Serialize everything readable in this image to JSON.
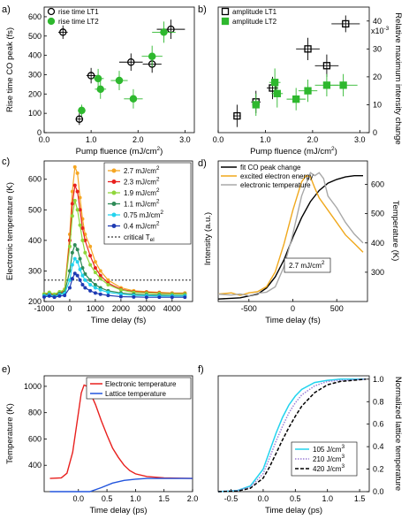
{
  "chart_data": [
    {
      "id": "a",
      "type": "scatter",
      "panel_label": "a)",
      "xlabel": "Pump fluence (mJ/cm",
      "xlabel_sup": "2",
      "xlabel_tail": ")",
      "ylabel": "Rise time CO peak (fs)",
      "xlim": [
        0,
        3.2
      ],
      "ylim": [
        0,
        650
      ],
      "xticks": [
        "0.0",
        "1.0",
        "2.0",
        "3.0"
      ],
      "xtick_values": [
        0,
        1,
        2,
        3
      ],
      "yticks": [
        "0",
        "100",
        "200",
        "300",
        "400",
        "500",
        "600"
      ],
      "ytick_values": [
        0,
        100,
        200,
        300,
        400,
        500,
        600
      ],
      "legend": "top-left",
      "series": [
        {
          "name": "rise time LT1",
          "marker": "open-circle",
          "color": "#000000",
          "points": [
            [
              0.4,
              520,
              0.1,
              35
            ],
            [
              0.75,
              70,
              0.08,
              30
            ],
            [
              1.0,
              295,
              0.1,
              40
            ],
            [
              1.85,
              365,
              0.25,
              45
            ],
            [
              2.3,
              355,
              0.2,
              45
            ],
            [
              2.7,
              535,
              0.3,
              50
            ]
          ]
        },
        {
          "name": "rise time LT2",
          "marker": "filled-circle",
          "color": "#2eb82e",
          "points": [
            [
              0.8,
              115,
              0.08,
              30
            ],
            [
              1.15,
              280,
              0.12,
              50
            ],
            [
              1.2,
              225,
              0.12,
              50
            ],
            [
              1.6,
              270,
              0.18,
              50
            ],
            [
              1.9,
              175,
              0.2,
              50
            ],
            [
              2.3,
              395,
              0.22,
              55
            ],
            [
              2.55,
              520,
              0.25,
              55
            ]
          ]
        }
      ]
    },
    {
      "id": "b",
      "type": "scatter",
      "panel_label": "b)",
      "xlabel": "Pump fluence (mJ/cm",
      "xlabel_sup": "2",
      "xlabel_tail": ")",
      "ylabel": "Relative maximum intensity change",
      "y_multiplier": "x10",
      "xlim": [
        0,
        3.2
      ],
      "ylim": [
        0,
        45
      ],
      "xticks": [
        "0.0",
        "1.0",
        "2.0",
        "3.0"
      ],
      "xtick_values": [
        0,
        1,
        2,
        3
      ],
      "yticks": [
        "0",
        "10",
        "20",
        "30",
        "40"
      ],
      "ytick_values": [
        0,
        10,
        20,
        30,
        40
      ],
      "legend": "top-left",
      "series": [
        {
          "name": "amplitude LT1",
          "marker": "open-square",
          "color": "#000000",
          "points": [
            [
              0.4,
              6,
              0.08,
              4
            ],
            [
              0.8,
              11,
              0.1,
              4
            ],
            [
              1.15,
              16,
              0.12,
              4
            ],
            [
              1.9,
              30,
              0.25,
              4
            ],
            [
              2.3,
              24,
              0.25,
              4
            ],
            [
              2.7,
              39,
              0.3,
              3
            ]
          ]
        },
        {
          "name": "amplitude LT2",
          "marker": "filled-square",
          "color": "#2eb82e",
          "points": [
            [
              0.8,
              10,
              0.08,
              4
            ],
            [
              1.2,
              18,
              0.12,
              5
            ],
            [
              1.25,
              14,
              0.12,
              5
            ],
            [
              1.65,
              12,
              0.2,
              4
            ],
            [
              1.9,
              15,
              0.2,
              4
            ],
            [
              2.3,
              17,
              0.25,
              4
            ],
            [
              2.65,
              17,
              0.3,
              4
            ]
          ]
        }
      ]
    },
    {
      "id": "c",
      "type": "line",
      "panel_label": "c)",
      "xlabel": "Time delay (fs)",
      "ylabel": "Electronic temperature (K)",
      "xlim": [
        -1000,
        4800
      ],
      "ylim": [
        200,
        660
      ],
      "xticks": [
        "-1000",
        "0",
        "1000",
        "2000",
        "3000",
        "4000"
      ],
      "xtick_values": [
        -1000,
        0,
        1000,
        2000,
        3000,
        4000
      ],
      "yticks": [
        "200",
        "300",
        "400",
        "500",
        "600"
      ],
      "ytick_values": [
        200,
        300,
        400,
        500,
        600
      ],
      "legend": "top-right",
      "t": [
        -1000,
        -800,
        -600,
        -400,
        -200,
        0,
        100,
        200,
        300,
        400,
        500,
        600,
        800,
        1000,
        1200,
        1500,
        2000,
        2500,
        3000,
        3500,
        4000,
        4500
      ],
      "series": [
        {
          "name": "2.7 mJ/cm",
          "sup": "2",
          "color": "#f5a623",
          "values": [
            225,
            228,
            222,
            230,
            240,
            420,
            560,
            640,
            620,
            540,
            470,
            420,
            380,
            330,
            300,
            270,
            245,
            235,
            232,
            230,
            228,
            228
          ]
        },
        {
          "name": "2.3 mJ/cm",
          "sup": "2",
          "color": "#e8201e",
          "values": [
            222,
            226,
            220,
            228,
            235,
            400,
            520,
            580,
            560,
            500,
            440,
            400,
            350,
            310,
            285,
            260,
            240,
            232,
            230,
            228,
            226,
            226
          ]
        },
        {
          "name": "1.9 mJ/cm",
          "sup": "2",
          "color": "#8fd63a",
          "values": [
            225,
            230,
            224,
            232,
            238,
            380,
            480,
            530,
            500,
            450,
            400,
            360,
            320,
            295,
            275,
            255,
            238,
            230,
            228,
            226,
            225,
            225
          ]
        },
        {
          "name": "1.1 mJ/cm",
          "sup": "2",
          "color": "#2e8b57",
          "values": [
            220,
            224,
            218,
            226,
            230,
            300,
            360,
            385,
            370,
            340,
            310,
            290,
            270,
            255,
            245,
            235,
            228,
            224,
            222,
            221,
            220,
            220
          ]
        },
        {
          "name": "0.75 mJ/cm",
          "sup": "2",
          "color": "#22d3ee",
          "values": [
            218,
            222,
            216,
            222,
            226,
            270,
            320,
            340,
            330,
            305,
            285,
            270,
            255,
            245,
            238,
            230,
            224,
            220,
            219,
            218,
            218,
            218
          ]
        },
        {
          "name": "0.4 mJ/cm",
          "sup": "2",
          "color": "#1f3bb3",
          "values": [
            215,
            218,
            214,
            218,
            220,
            245,
            275,
            292,
            285,
            270,
            255,
            245,
            235,
            228,
            224,
            220,
            216,
            215,
            214,
            214,
            214,
            214
          ]
        }
      ],
      "reference_line": {
        "name": "critical T",
        "sub": "el",
        "value": 270,
        "style": "dotted"
      }
    },
    {
      "id": "d",
      "type": "line",
      "panel_label": "d)",
      "xlabel": "Time delay (fs)",
      "ylabel": "Intensity (a.u.)",
      "ylabel_right": "Temperature (K)",
      "xlim": [
        -850,
        850
      ],
      "y2lim": [
        200,
        680
      ],
      "xticks": [
        "-500",
        "0",
        "500"
      ],
      "xtick_values": [
        -500,
        0,
        500
      ],
      "y2ticks": [
        "300",
        "400",
        "500",
        "600"
      ],
      "y2tick_values": [
        300,
        400,
        500,
        600
      ],
      "legend": "top-left",
      "annotation": {
        "text": "2.7 mJ/cm",
        "sup": "2"
      },
      "series": [
        {
          "name": "fit CO peak change",
          "color": "#000000",
          "axis": "left",
          "x": [
            -850,
            -600,
            -400,
            -300,
            -200,
            -100,
            0,
            100,
            200,
            300,
            400,
            500,
            600,
            700,
            800
          ],
          "values": [
            0,
            0.01,
            0.04,
            0.09,
            0.18,
            0.32,
            0.5,
            0.66,
            0.79,
            0.88,
            0.94,
            0.97,
            0.99,
            1.0,
            1.0
          ]
        },
        {
          "name": "excited electron energy",
          "color": "#f0a81c",
          "axis": "left",
          "x": [
            -850,
            -700,
            -600,
            -500,
            -400,
            -300,
            -200,
            -100,
            0,
            100,
            150,
            200,
            250,
            300,
            400,
            500,
            600,
            700,
            800
          ],
          "values": [
            0.04,
            0.05,
            0.03,
            0.05,
            0.06,
            0.1,
            0.22,
            0.45,
            0.72,
            0.95,
            1.0,
            0.99,
            0.9,
            0.82,
            0.72,
            0.62,
            0.52,
            0.45,
            0.38
          ]
        },
        {
          "name": "electronic temperature",
          "color": "#a8a8a8",
          "axis": "right",
          "x": [
            -850,
            -700,
            -600,
            -500,
            -400,
            -300,
            -200,
            -100,
            0,
            100,
            200,
            250,
            300,
            350,
            400,
            500,
            600,
            700,
            800
          ],
          "values": [
            225,
            222,
            226,
            220,
            228,
            232,
            250,
            320,
            430,
            560,
            640,
            630,
            640,
            620,
            560,
            520,
            470,
            430,
            400
          ]
        }
      ]
    },
    {
      "id": "e",
      "type": "line",
      "panel_label": "e)",
      "xlabel": "Time delay (ps)",
      "ylabel": "Temperature (K)",
      "xlim": [
        -0.6,
        2.0
      ],
      "ylim": [
        200,
        1080
      ],
      "xticks": [
        "0.0",
        "0.5",
        "1.0",
        "1.5",
        "2.0"
      ],
      "xtick_values": [
        0,
        0.5,
        1,
        1.5,
        2
      ],
      "yticks": [
        "400",
        "600",
        "800",
        "1000"
      ],
      "ytick_values": [
        400,
        600,
        800,
        1000
      ],
      "legend": "top-right",
      "series": [
        {
          "name": "Electronic temperature",
          "color": "#e8201e",
          "x": [
            -0.5,
            -0.3,
            -0.2,
            -0.1,
            0,
            0.05,
            0.1,
            0.15,
            0.2,
            0.3,
            0.4,
            0.5,
            0.6,
            0.7,
            0.8,
            0.9,
            1.0,
            1.2,
            1.5,
            2.0
          ],
          "values": [
            300,
            305,
            340,
            500,
            800,
            950,
            1010,
            1000,
            960,
            860,
            740,
            630,
            530,
            460,
            400,
            360,
            335,
            315,
            305,
            300
          ]
        },
        {
          "name": "Lattice temperature",
          "color": "#2255dd",
          "x": [
            -0.5,
            -0.2,
            0,
            0.2,
            0.4,
            0.6,
            0.8,
            1.0,
            1.2,
            1.5,
            2.0
          ],
          "values": [
            100,
            102,
            120,
            180,
            230,
            265,
            285,
            295,
            300,
            300,
            300
          ]
        }
      ]
    },
    {
      "id": "f",
      "type": "line",
      "panel_label": "f)",
      "xlabel": "Time delay (ps)",
      "ylabel_right": "Normalized lattice temperature",
      "xlim": [
        -0.7,
        1.65
      ],
      "y2lim": [
        0,
        1.03
      ],
      "xticks": [
        "-0.5",
        "0.0",
        "0.5",
        "1.0",
        "1.5"
      ],
      "xtick_values": [
        -0.5,
        0,
        0.5,
        1,
        1.5
      ],
      "y2ticks": [
        "0.0",
        "0.2",
        "0.4",
        "0.6",
        "0.8",
        "1.0"
      ],
      "y2tick_values": [
        0,
        0.2,
        0.4,
        0.6,
        0.8,
        1.0
      ],
      "legend": "bottom-right",
      "series": [
        {
          "name": "105 J/cm",
          "sup": "3",
          "color": "#22d3ee",
          "style": "solid",
          "x": [
            -0.7,
            -0.4,
            -0.2,
            0,
            0.1,
            0.2,
            0.3,
            0.4,
            0.5,
            0.6,
            0.8,
            1.0,
            1.2,
            1.6
          ],
          "values": [
            0,
            0.01,
            0.05,
            0.2,
            0.36,
            0.52,
            0.66,
            0.77,
            0.85,
            0.91,
            0.97,
            0.99,
            1.0,
            1.0
          ]
        },
        {
          "name": "210 J/cm",
          "sup": "3",
          "color": "#9b7fd6",
          "style": "dotted",
          "x": [
            -0.7,
            -0.4,
            -0.2,
            0,
            0.1,
            0.2,
            0.3,
            0.4,
            0.5,
            0.6,
            0.8,
            1.0,
            1.2,
            1.6
          ],
          "values": [
            0,
            0.01,
            0.04,
            0.16,
            0.3,
            0.45,
            0.58,
            0.7,
            0.79,
            0.86,
            0.94,
            0.98,
            0.99,
            1.0
          ]
        },
        {
          "name": "420 J/cm",
          "sup": "3",
          "color": "#000000",
          "style": "dashed",
          "x": [
            -0.7,
            -0.4,
            -0.2,
            0,
            0.1,
            0.2,
            0.3,
            0.4,
            0.5,
            0.6,
            0.8,
            1.0,
            1.2,
            1.6
          ],
          "values": [
            0,
            0.005,
            0.03,
            0.12,
            0.22,
            0.34,
            0.46,
            0.57,
            0.67,
            0.76,
            0.88,
            0.95,
            0.98,
            1.0
          ]
        }
      ]
    }
  ]
}
